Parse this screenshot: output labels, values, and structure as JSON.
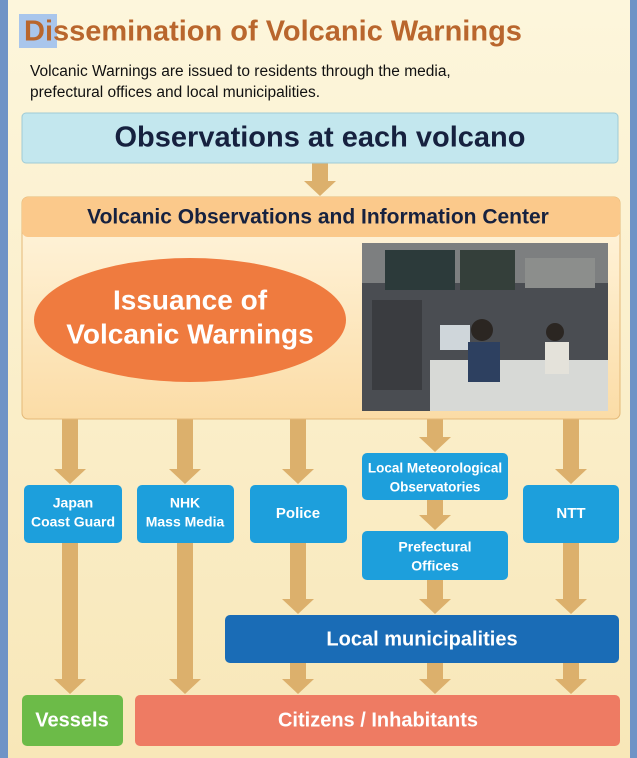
{
  "header": {
    "title": "Dissemination of Volcanic Warnings",
    "subtitle": [
      "Volcanic Warnings are issued to residents through the media,",
      "prefectural offices and local municipalities."
    ]
  },
  "nodes": [
    {
      "lines": [
        "Observations at each volcano"
      ]
    },
    {
      "lines": [
        "Volcanic Observations and Information Center"
      ]
    },
    {
      "lines": [
        "Issuance of",
        "Volcanic Warnings"
      ]
    },
    {
      "lines": [
        "Japan",
        "Coast Guard"
      ]
    },
    {
      "lines": [
        "NHK",
        "Mass Media"
      ]
    },
    {
      "lines": [
        "Police"
      ]
    },
    {
      "lines": [
        "Local Meteorological",
        "Observatories"
      ]
    },
    {
      "lines": [
        "NTT"
      ]
    },
    {
      "lines": [
        "Prefectural",
        "Offices"
      ]
    },
    {
      "lines": [
        "Local municipalities"
      ]
    },
    {
      "lines": [
        "Vessels"
      ]
    },
    {
      "lines": [
        "Citizens / Inhabitants"
      ]
    }
  ]
}
